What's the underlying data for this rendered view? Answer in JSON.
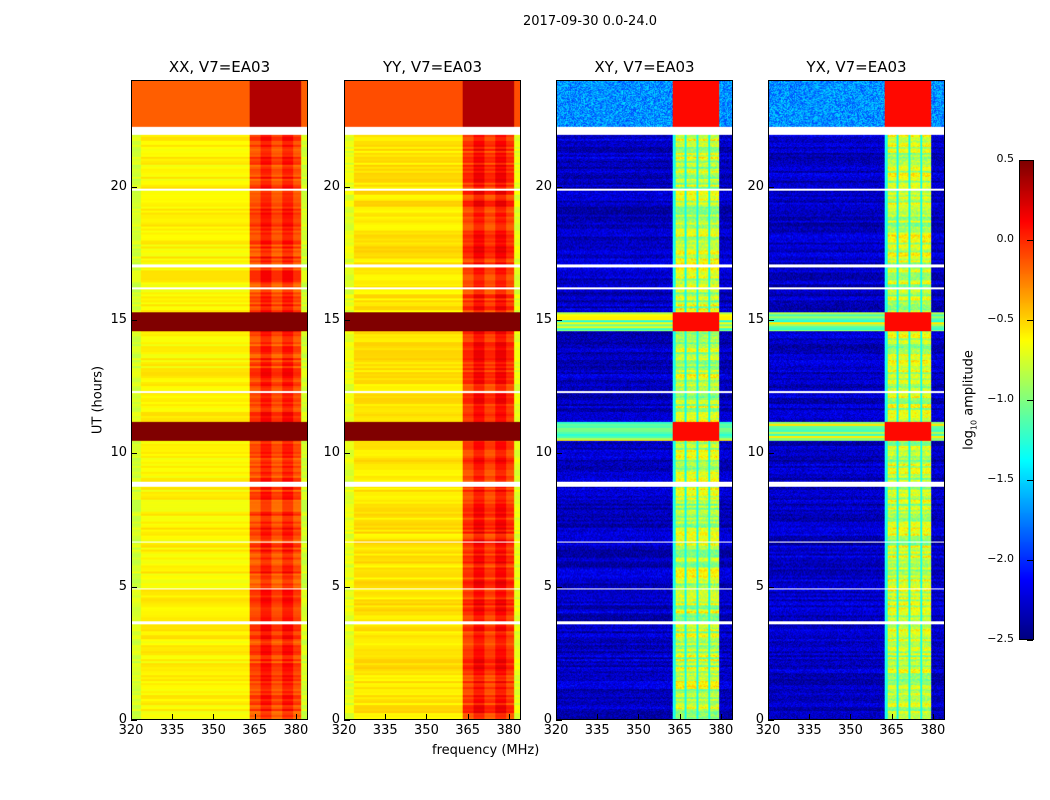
{
  "chart_data": {
    "type": "heatmap",
    "title": "2017-09-30 0.0-24.0",
    "xlabel": "frequency (MHz)",
    "ylabel": "UT (hours)",
    "xlim": [
      320,
      384.4
    ],
    "ylim": [
      0,
      24
    ],
    "xticks": [
      "320",
      "335",
      "350",
      "365",
      "380"
    ],
    "xtick_values": [
      320,
      335,
      350,
      365,
      380
    ],
    "yticks": [
      "0",
      "5",
      "10",
      "15",
      "20"
    ],
    "ytick_values": [
      0,
      5,
      10,
      15,
      20
    ],
    "colorbar": {
      "label_prefix": "log",
      "label_sub": "10",
      "label_suffix": " amplitude",
      "range": [
        -2.5,
        0.5
      ],
      "ticks": [
        "0.5",
        "0.0",
        "−0.5",
        "−1.0",
        "−1.5",
        "−2.0",
        "−2.5"
      ],
      "tick_values": [
        0.5,
        0,
        -0.5,
        -1,
        -1.5,
        -2,
        -2.5
      ],
      "colormap": "jet"
    },
    "panels": [
      {
        "title": "XX, V7=EA03",
        "type": "auto",
        "base": -0.6,
        "band": [
          363,
          382
        ],
        "band_level": -0.05,
        "top_level": -0.15,
        "epoch_level": 0.5
      },
      {
        "title": "YY, V7=EA03",
        "type": "auto",
        "base": -0.55,
        "band": [
          363,
          382
        ],
        "band_level": 0.0,
        "top_level": -0.1,
        "epoch_level": 0.5
      },
      {
        "title": "XY, V7=EA03",
        "type": "cross",
        "base": -2.3,
        "band": [
          362.5,
          379.5
        ],
        "band_level": -0.8,
        "top_level": -1.7,
        "epoch_level": 0.1
      },
      {
        "title": "YX, V7=EA03",
        "type": "cross",
        "base": -2.3,
        "band": [
          362.5,
          379.5
        ],
        "band_level": -0.8,
        "top_level": -1.7,
        "epoch_level": 0.1
      }
    ],
    "high_epochs_hours": [
      [
        10.5,
        11.2
      ],
      [
        14.6,
        15.3
      ]
    ],
    "flagged_hours": [
      [
        22.0,
        22.3
      ],
      [
        8.75,
        8.95
      ],
      [
        17.0,
        17.1
      ],
      [
        3.6,
        3.7
      ],
      [
        6.65,
        6.7
      ],
      [
        12.3,
        12.35
      ],
      [
        16.2,
        16.25
      ],
      [
        4.9,
        4.95
      ],
      [
        19.9,
        19.95
      ]
    ]
  }
}
